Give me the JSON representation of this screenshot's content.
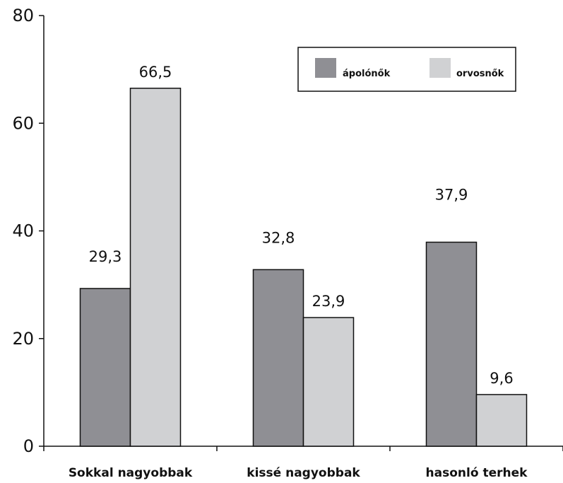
{
  "chart_data": {
    "type": "bar",
    "title": "",
    "xlabel": "",
    "ylabel": "",
    "categories": [
      "Sokkal nagyobbak",
      "kissé nagyobbak",
      "hasonló terhek"
    ],
    "series": [
      {
        "name": "ápolónők",
        "values": [
          29.3,
          32.8,
          37.9
        ],
        "labels": [
          "29,3",
          "32,8",
          "37,9"
        ],
        "color": "#8f8f94"
      },
      {
        "name": "orvosnők",
        "values": [
          66.5,
          23.9,
          9.6
        ],
        "labels": [
          "66,5",
          "23,9",
          "9,6"
        ],
        "color": "#d0d1d3"
      }
    ],
    "ylim": [
      0,
      80
    ],
    "yticks": [
      0,
      20,
      40,
      60,
      80
    ],
    "grid": false,
    "legend_position": "top-right"
  }
}
